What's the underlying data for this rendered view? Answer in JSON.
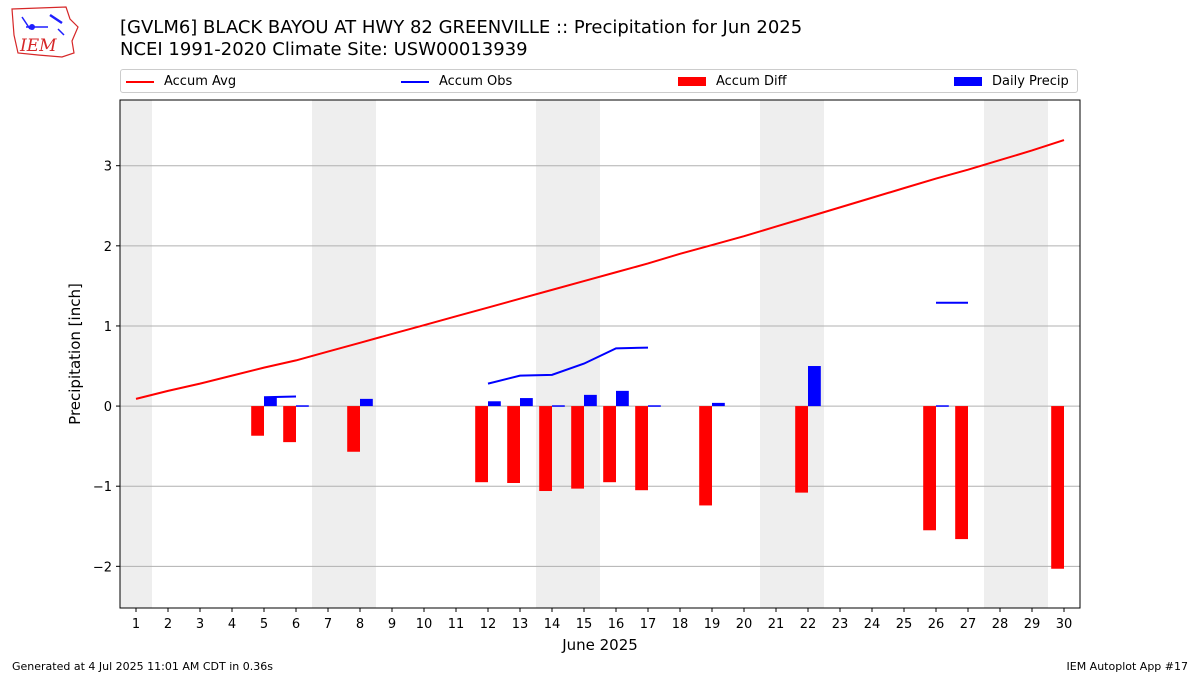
{
  "header": {
    "title_line1": "[GVLM6] BLACK BAYOU AT HWY 82 GREENVILLE :: Precipitation for Jun 2025",
    "title_line2": "NCEI 1991-2020 Climate Site: USW00013939"
  },
  "logo": {
    "text": "IEM",
    "color": "#d62728"
  },
  "footer": {
    "left": "Generated at 4 Jul 2025 11:01 AM CDT in 0.36s",
    "right": "IEM Autoplot App #17"
  },
  "colors": {
    "accum_avg": "#ff0000",
    "accum_obs": "#0000ff",
    "accum_diff": "#ff0000",
    "daily_precip": "#0000ff",
    "weekend_shade": "#eeeeee",
    "grid": "#b0b0b0"
  },
  "chart_data": {
    "type": "bar",
    "xlabel": "June 2025",
    "ylabel": "Precipitation [inch]",
    "xlim": [
      0.5,
      30.5
    ],
    "ylim": [
      -2.52,
      3.82
    ],
    "yticks": [
      -2,
      -1,
      0,
      1,
      2,
      3
    ],
    "ytick_labels": [
      "−2",
      "−1",
      "0",
      "1",
      "2",
      "3"
    ],
    "categories": [
      1,
      2,
      3,
      4,
      5,
      6,
      7,
      8,
      9,
      10,
      11,
      12,
      13,
      14,
      15,
      16,
      17,
      18,
      19,
      20,
      21,
      22,
      23,
      24,
      25,
      26,
      27,
      28,
      29,
      30
    ],
    "grid": "horizontal",
    "legend_position": "top",
    "weekend_days": [
      1,
      7,
      8,
      14,
      15,
      21,
      22,
      28,
      29
    ],
    "series": [
      {
        "name": "Accum Avg",
        "kind": "line",
        "values": [
          0.09,
          0.19,
          0.28,
          0.38,
          0.48,
          0.57,
          0.68,
          0.79,
          0.9,
          1.01,
          1.12,
          1.23,
          1.34,
          1.45,
          1.56,
          1.67,
          1.78,
          1.9,
          2.01,
          2.12,
          2.24,
          2.36,
          2.48,
          2.6,
          2.72,
          2.84,
          2.95,
          3.07,
          3.19,
          3.32
        ]
      },
      {
        "name": "Accum Obs",
        "kind": "line",
        "values": [
          null,
          null,
          null,
          null,
          0.11,
          0.12,
          null,
          null,
          null,
          null,
          null,
          0.28,
          0.38,
          0.39,
          0.53,
          0.72,
          0.73,
          null,
          null,
          null,
          null,
          null,
          null,
          null,
          null,
          1.29,
          1.29,
          null,
          null,
          null
        ]
      },
      {
        "name": "Accum Diff",
        "kind": "bar",
        "values": [
          null,
          null,
          null,
          null,
          -0.37,
          -0.45,
          null,
          -0.57,
          null,
          null,
          null,
          -0.95,
          -0.96,
          -1.06,
          -1.03,
          -0.95,
          -1.05,
          null,
          -1.24,
          null,
          null,
          -1.08,
          null,
          null,
          null,
          -1.55,
          -1.66,
          null,
          null,
          -2.03
        ]
      },
      {
        "name": "Daily Precip",
        "kind": "bar",
        "values": [
          null,
          null,
          null,
          null,
          0.11,
          0.01,
          null,
          0.09,
          null,
          null,
          null,
          0.06,
          0.1,
          0.01,
          0.14,
          0.19,
          0.01,
          null,
          0.04,
          null,
          null,
          0.5,
          null,
          null,
          null,
          0.01,
          null,
          null,
          null,
          null
        ]
      }
    ]
  }
}
